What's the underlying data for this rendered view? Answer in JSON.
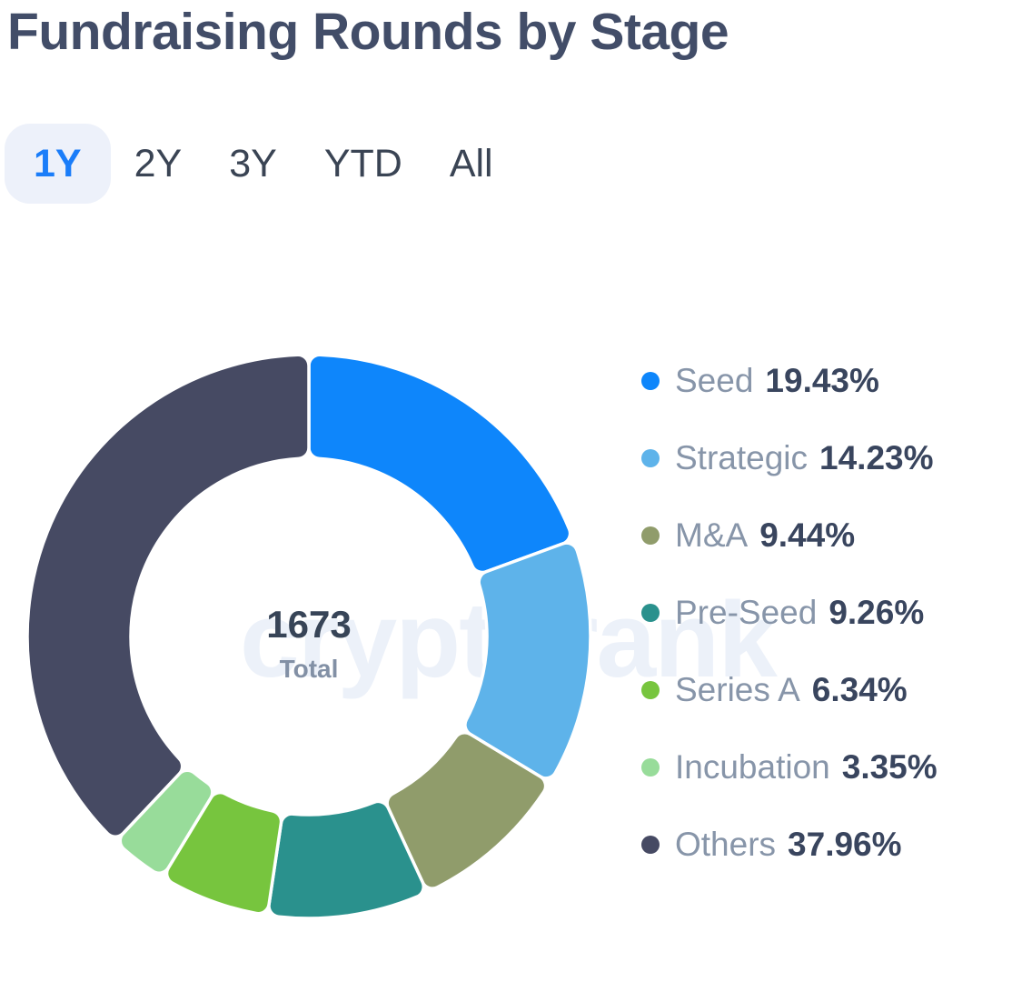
{
  "page": {
    "title": "Fundraising Rounds by Stage"
  },
  "tabs": {
    "items": [
      {
        "label": "1Y",
        "active": true
      },
      {
        "label": "2Y",
        "active": false
      },
      {
        "label": "3Y",
        "active": false
      },
      {
        "label": "YTD",
        "active": false
      },
      {
        "label": "All",
        "active": false
      }
    ],
    "active_color": "#1a7df9",
    "active_bg": "#edf1fa",
    "inactive_color": "#3a4454"
  },
  "watermark": {
    "text": "cryptorank"
  },
  "chart_data": {
    "type": "pie",
    "subtype": "donut",
    "title": "Fundraising Rounds by Stage",
    "total_value": "1673",
    "total_label": "Total",
    "legend_position": "right",
    "start_angle": "top",
    "clockwise": true,
    "outer_radius_px": 310,
    "inner_radius_px": 196,
    "series": [
      {
        "name": "Seed",
        "percent": 19.43,
        "color": "#0e86fb"
      },
      {
        "name": "Strategic",
        "percent": 14.23,
        "color": "#5eb3ea"
      },
      {
        "name": "M&A",
        "percent": 9.44,
        "color": "#909c6b"
      },
      {
        "name": "Pre-Seed",
        "percent": 9.26,
        "color": "#2a918d"
      },
      {
        "name": "Series A",
        "percent": 6.34,
        "color": "#77c53e"
      },
      {
        "name": "Incubation",
        "percent": 3.35,
        "color": "#98dc9a"
      },
      {
        "name": "Others",
        "percent": 37.96,
        "color": "#464a63"
      }
    ]
  }
}
